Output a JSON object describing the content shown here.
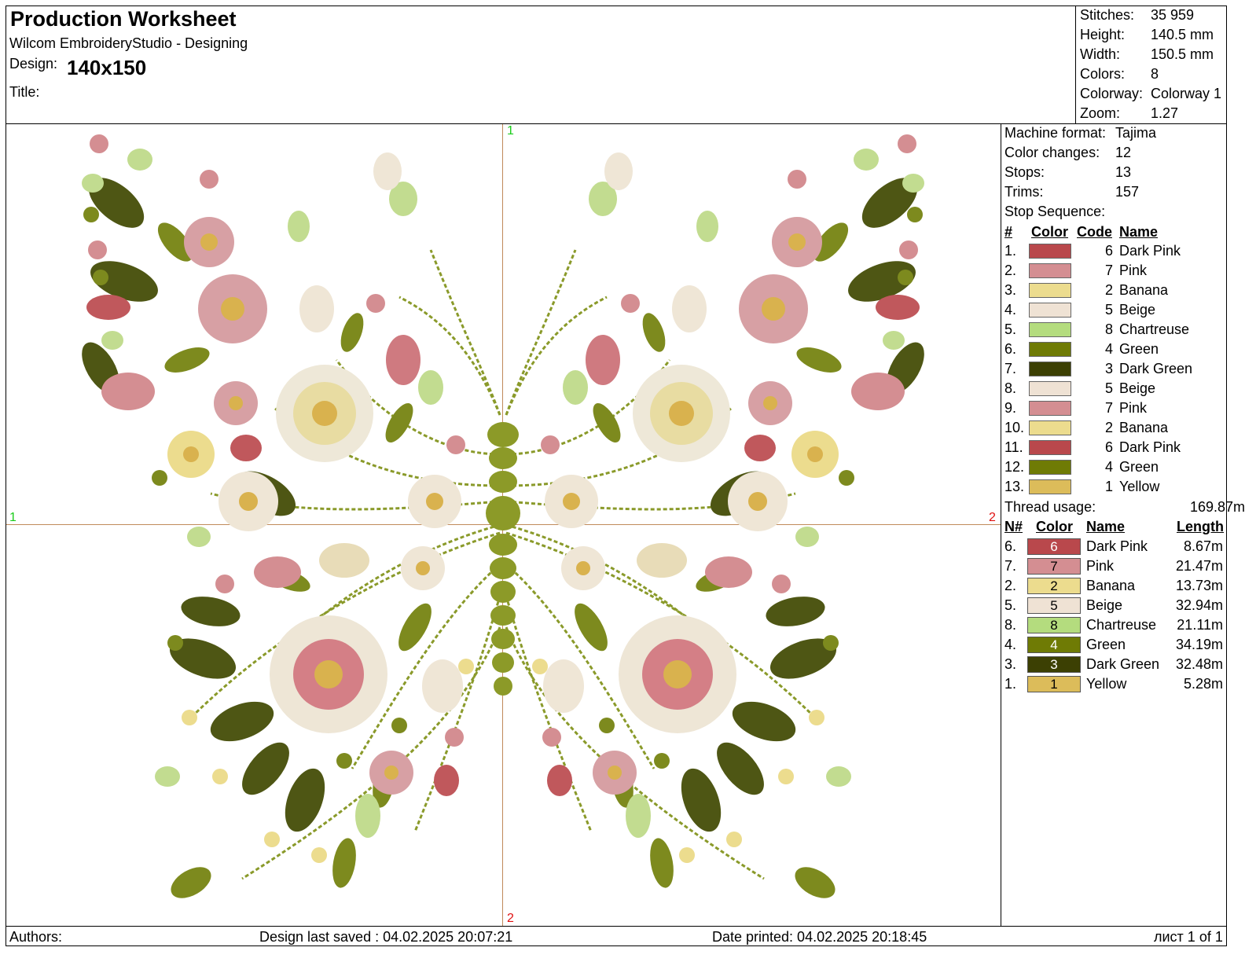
{
  "header": {
    "title": "Production Worksheet",
    "app": "Wilcom EmbroideryStudio - Designing",
    "design_label": "Design:",
    "design_value": "140x150",
    "title_label": "Title:"
  },
  "stats": [
    {
      "label": "Stitches:",
      "value": "35 959"
    },
    {
      "label": "Height:",
      "value": "140.5 mm"
    },
    {
      "label": "Width:",
      "value": "150.5 mm"
    },
    {
      "label": "Colors:",
      "value": "8"
    },
    {
      "label": "Colorway:",
      "value": "Colorway 1"
    },
    {
      "label": "Zoom:",
      "value": "1.27"
    }
  ],
  "machine": [
    {
      "label": "Machine format:",
      "value": "Tajima"
    },
    {
      "label": "Color changes:",
      "value": "12"
    },
    {
      "label": "Stops:",
      "value": "13"
    },
    {
      "label": "Trims:",
      "value": "157"
    }
  ],
  "stop_sequence": {
    "label": "Stop Sequence:",
    "headers": {
      "num": "#",
      "color": "Color",
      "code": "Code",
      "name": "Name"
    },
    "rows": [
      {
        "num": "1.",
        "color": "#b9484c",
        "code": "6",
        "name": "Dark Pink"
      },
      {
        "num": "2.",
        "color": "#d48e92",
        "code": "7",
        "name": "Pink"
      },
      {
        "num": "3.",
        "color": "#ecdc8e",
        "code": "2",
        "name": "Banana"
      },
      {
        "num": "4.",
        "color": "#efe2d4",
        "code": "5",
        "name": "Beige"
      },
      {
        "num": "5.",
        "color": "#b4dc7e",
        "code": "8",
        "name": "Chartreuse"
      },
      {
        "num": "6.",
        "color": "#6f7b05",
        "code": "4",
        "name": "Green"
      },
      {
        "num": "7.",
        "color": "#3c4003",
        "code": "3",
        "name": "Dark Green"
      },
      {
        "num": "8.",
        "color": "#efe2d4",
        "code": "5",
        "name": "Beige"
      },
      {
        "num": "9.",
        "color": "#d48e92",
        "code": "7",
        "name": "Pink"
      },
      {
        "num": "10.",
        "color": "#ecdc8e",
        "code": "2",
        "name": "Banana"
      },
      {
        "num": "11.",
        "color": "#b9484c",
        "code": "6",
        "name": "Dark Pink"
      },
      {
        "num": "12.",
        "color": "#6f7b05",
        "code": "4",
        "name": "Green"
      },
      {
        "num": "13.",
        "color": "#dcbc5a",
        "code": "1",
        "name": "Yellow"
      }
    ]
  },
  "thread_usage": {
    "label": "Thread usage:",
    "total": "169.87m",
    "headers": {
      "num": "N#",
      "color": "Color",
      "name": "Name",
      "length": "Length"
    },
    "rows": [
      {
        "num": "6.",
        "color": "#b9484c",
        "code": "6",
        "text": "#ffffff",
        "name": "Dark Pink",
        "length": "8.67m"
      },
      {
        "num": "7.",
        "color": "#d48e92",
        "code": "7",
        "text": "#000000",
        "name": "Pink",
        "length": "21.47m"
      },
      {
        "num": "2.",
        "color": "#ecdc8e",
        "code": "2",
        "text": "#000000",
        "name": "Banana",
        "length": "13.73m"
      },
      {
        "num": "5.",
        "color": "#efe2d4",
        "code": "5",
        "text": "#000000",
        "name": "Beige",
        "length": "32.94m"
      },
      {
        "num": "8.",
        "color": "#b4dc7e",
        "code": "8",
        "text": "#000000",
        "name": "Chartreuse",
        "length": "21.11m"
      },
      {
        "num": "4.",
        "color": "#6f7b05",
        "code": "4",
        "text": "#ffffff",
        "name": "Green",
        "length": "34.19m"
      },
      {
        "num": "3.",
        "color": "#3c4003",
        "code": "3",
        "text": "#ffffff",
        "name": "Dark Green",
        "length": "32.48m"
      },
      {
        "num": "1.",
        "color": "#dcbc5a",
        "code": "1",
        "text": "#000000",
        "name": "Yellow",
        "length": "5.28m"
      }
    ]
  },
  "markers": {
    "top": "1",
    "left": "1",
    "right": "2",
    "bottom": "2"
  },
  "footer": {
    "authors": "Authors:",
    "saved": "Design last saved : 04.02.2025 20:07:21",
    "printed": "Date printed: 04.02.2025 20:18:45",
    "page": "лист 1 of 1"
  }
}
